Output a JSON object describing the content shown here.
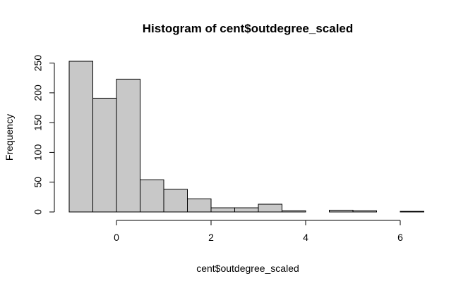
{
  "chart_data": {
    "type": "bar",
    "title": "Histogram of cent$outdegree_scaled",
    "xlabel": "cent$outdegree_scaled",
    "ylabel": "Frequency",
    "bins": [
      {
        "x0": -1.0,
        "x1": -0.5,
        "count": 253
      },
      {
        "x0": -0.5,
        "x1": 0.0,
        "count": 191
      },
      {
        "x0": 0.0,
        "x1": 0.5,
        "count": 223
      },
      {
        "x0": 0.5,
        "x1": 1.0,
        "count": 54
      },
      {
        "x0": 1.0,
        "x1": 1.5,
        "count": 38
      },
      {
        "x0": 1.5,
        "x1": 2.0,
        "count": 22
      },
      {
        "x0": 2.0,
        "x1": 2.5,
        "count": 7
      },
      {
        "x0": 2.5,
        "x1": 3.0,
        "count": 7
      },
      {
        "x0": 3.0,
        "x1": 3.5,
        "count": 13
      },
      {
        "x0": 3.5,
        "x1": 4.0,
        "count": 2
      },
      {
        "x0": 4.0,
        "x1": 4.5,
        "count": 0
      },
      {
        "x0": 4.5,
        "x1": 5.0,
        "count": 3
      },
      {
        "x0": 5.0,
        "x1": 5.5,
        "count": 2
      },
      {
        "x0": 5.5,
        "x1": 6.0,
        "count": 0
      },
      {
        "x0": 6.0,
        "x1": 6.5,
        "count": 1
      }
    ],
    "xticks": [
      0,
      2,
      4,
      6
    ],
    "yticks": [
      0,
      50,
      100,
      150,
      200,
      250
    ],
    "xlim": [
      -1.0,
      6.5
    ],
    "ylim": [
      0,
      253
    ],
    "bar_color": "#c8c8c8",
    "grid": false,
    "legend": "none"
  }
}
